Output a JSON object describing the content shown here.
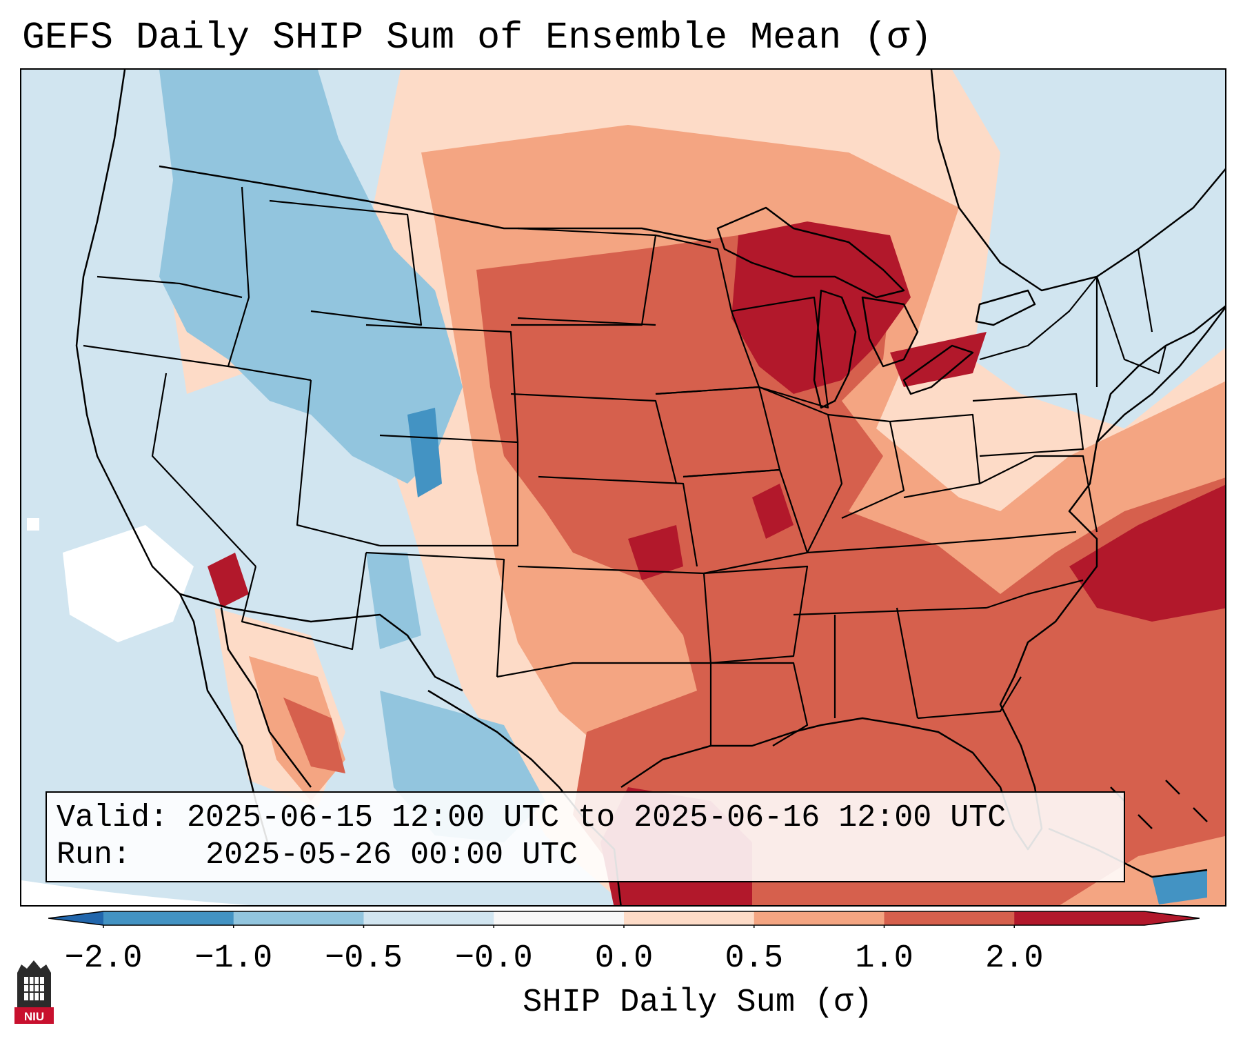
{
  "title": "GEFS Daily SHIP Sum of Ensemble Mean (σ)",
  "info": {
    "valid_label": "Valid:",
    "valid_value": "2025-06-15 12:00 UTC to 2025-06-16 12:00 UTC",
    "run_label": "Run:",
    "run_value": "2025-05-26 00:00 UTC"
  },
  "colorbar": {
    "label": "SHIP Daily Sum (σ)",
    "ticks": [
      "−2.0",
      "−1.0",
      "−0.5",
      "−0.0",
      "0.0",
      "0.5",
      "1.0",
      "2.0"
    ],
    "colors": [
      "#4393c3",
      "#92c5de",
      "#d1e5f0",
      "#f7f7f7",
      "#fddbc7",
      "#f4a582",
      "#d6604d",
      "#b2182b"
    ],
    "extend_low_color": "#2166ac",
    "extend_high_color": "#b2182b"
  },
  "map": {
    "field_colors": {
      "strong_negative": "#4393c3",
      "negative": "#92c5de",
      "weak_negative": "#d1e5f0",
      "neutral": "#ffffff",
      "weak_positive": "#fddbc7",
      "positive": "#f4a582",
      "strong_positive": "#d6604d",
      "extreme_positive": "#b2182b"
    },
    "boundary_color": "#000000"
  },
  "logo": {
    "text": "NIU",
    "color": "#c8102e"
  }
}
